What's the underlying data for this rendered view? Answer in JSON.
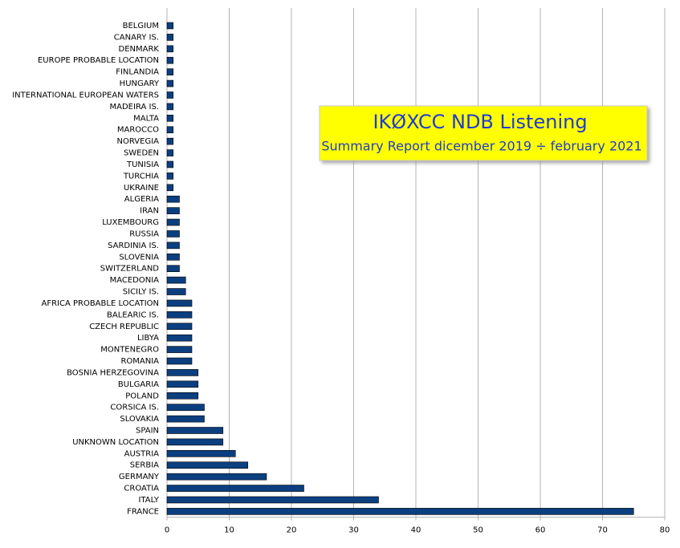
{
  "chart_data": {
    "type": "hbar",
    "title": "IKØXCC NDB Listening",
    "subtitle": "Summary Report dicember 2019 ÷ february 2021",
    "categories": [
      "BELGIUM",
      "CANARY IS.",
      "DENMARK",
      "EUROPE PROBABLE LOCATION",
      "FINLANDIA",
      "HUNGARY",
      "INTERNATIONAL EUROPEAN WATERS",
      "MADEIRA IS.",
      "MALTA",
      "MAROCCO",
      "NORVEGIA",
      "SWEDEN",
      "TUNISIA",
      "TURCHIA",
      "UKRAINE",
      "ALGERIA",
      "IRAN",
      "LUXEMBOURG",
      "RUSSIA",
      "SARDINIA IS.",
      "SLOVENIA",
      "SWITZERLAND",
      "MACEDONIA",
      "SICILY IS.",
      "AFRICA PROBABLE LOCATION",
      "BALEARIC IS.",
      "CZECH REPUBLIC",
      "LIBYA",
      "MONTENEGRO",
      "ROMANIA",
      "BOSNIA HERZEGOVINA",
      "BULGARIA",
      "POLAND",
      "CORSICA IS.",
      "SLOVAKIA",
      "SPAIN",
      "UNKNOWN LOCATION",
      "AUSTRIA",
      "SERBIA",
      "GERMANY",
      "CROATIA",
      "ITALY",
      "FRANCE"
    ],
    "values": [
      1,
      1,
      1,
      1,
      1,
      1,
      1,
      1,
      1,
      1,
      1,
      1,
      1,
      1,
      1,
      2,
      2,
      2,
      2,
      2,
      2,
      2,
      3,
      3,
      4,
      4,
      4,
      4,
      4,
      4,
      5,
      5,
      5,
      6,
      6,
      9,
      9,
      11,
      13,
      16,
      22,
      34,
      75
    ],
    "color": "#0b3f7f",
    "xlim": [
      0,
      80
    ],
    "xticks": [
      0,
      10,
      20,
      30,
      40,
      50,
      60,
      70,
      80
    ],
    "grid": true
  }
}
